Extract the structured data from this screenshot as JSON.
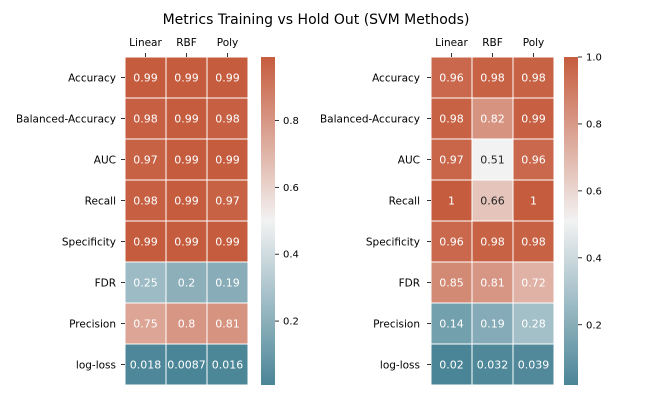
{
  "chart_data": [
    {
      "type": "heatmap",
      "title": "Metrics Training vs Hold Out (SVM Methods)",
      "columns": [
        "Linear",
        "RBF",
        "Poly"
      ],
      "rows": [
        "Accuracy",
        "Balanced-Accuracy",
        "AUC",
        "Recall",
        "Specificity",
        "FDR",
        "Precision",
        "log-loss"
      ],
      "values": [
        [
          0.99,
          0.99,
          0.99
        ],
        [
          0.98,
          0.99,
          0.98
        ],
        [
          0.97,
          0.99,
          0.99
        ],
        [
          0.98,
          0.99,
          0.97
        ],
        [
          0.99,
          0.99,
          0.99
        ],
        [
          0.25,
          0.2,
          0.19
        ],
        [
          0.75,
          0.8,
          0.81
        ],
        [
          0.018,
          0.0087,
          0.016
        ]
      ],
      "labels": [
        [
          "0.99",
          "0.99",
          "0.99"
        ],
        [
          "0.98",
          "0.99",
          "0.98"
        ],
        [
          "0.97",
          "0.99",
          "0.99"
        ],
        [
          "0.98",
          "0.99",
          "0.97"
        ],
        [
          "0.99",
          "0.99",
          "0.99"
        ],
        [
          "0.25",
          "0.2",
          "0.19"
        ],
        [
          "0.75",
          "0.8",
          "0.81"
        ],
        [
          "0.018",
          "0.0087",
          "0.016"
        ]
      ],
      "colorbar": {
        "vmin": 0.0087,
        "vmax": 0.99,
        "ticks": [
          0.2,
          0.4,
          0.6,
          0.8
        ],
        "tick_labels": [
          "0.2",
          "0.4",
          "0.6",
          "0.8"
        ]
      }
    },
    {
      "type": "heatmap",
      "title": "",
      "columns": [
        "Linear",
        "RBF",
        "Poly"
      ],
      "rows": [
        "Accuracy",
        "Balanced-Accuracy",
        "AUC",
        "Recall",
        "Specificity",
        "FDR",
        "Precision",
        "log-loss"
      ],
      "values": [
        [
          0.96,
          0.98,
          0.98
        ],
        [
          0.98,
          0.82,
          0.99
        ],
        [
          0.97,
          0.51,
          0.96
        ],
        [
          1,
          0.66,
          1
        ],
        [
          0.96,
          0.98,
          0.98
        ],
        [
          0.85,
          0.81,
          0.72
        ],
        [
          0.14,
          0.19,
          0.28
        ],
        [
          0.02,
          0.032,
          0.039
        ]
      ],
      "labels": [
        [
          "0.96",
          "0.98",
          "0.98"
        ],
        [
          "0.98",
          "0.82",
          "0.99"
        ],
        [
          "0.97",
          "0.51",
          "0.96"
        ],
        [
          "1",
          "0.66",
          "1"
        ],
        [
          "0.96",
          "0.98",
          "0.98"
        ],
        [
          "0.85",
          "0.81",
          "0.72"
        ],
        [
          "0.14",
          "0.19",
          "0.28"
        ],
        [
          "0.02",
          "0.032",
          "0.039"
        ]
      ],
      "colorbar": {
        "vmin": 0.02,
        "vmax": 1.0,
        "ticks": [
          0.2,
          0.4,
          0.6,
          0.8,
          1.0
        ],
        "tick_labels": [
          "0.2",
          "0.4",
          "0.6",
          "0.8",
          "1.0"
        ]
      }
    }
  ],
  "colors": {
    "low": "#4a8597",
    "mid": "#f2f2f2",
    "high": "#c65c3e",
    "text_light": "#ffffff",
    "text_dark": "#262626",
    "grid_line": "#ffffff"
  }
}
